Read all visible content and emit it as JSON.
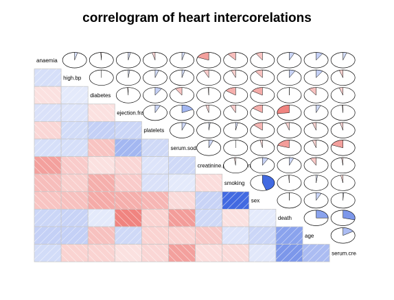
{
  "chart_data": {
    "type": "heatmap",
    "title": "correlogram of heart intercorelations",
    "variables": [
      "anaemia",
      "high.bp",
      "diabetes",
      "ejection.fraction",
      "platelets",
      "serum.sodium",
      "creatinine.phosphokinase",
      "smoking",
      "sex",
      "death",
      "age",
      "serum.creatinine"
    ],
    "lower_panel": "shade",
    "upper_panel": "pie",
    "correlations": [
      [
        1.0,
        0.04,
        -0.01,
        0.03,
        -0.04,
        0.04,
        -0.19,
        -0.11,
        -0.09,
        0.07,
        0.09,
        0.05
      ],
      [
        0.04,
        1.0,
        0.0,
        0.02,
        0.05,
        0.04,
        -0.07,
        -0.06,
        -0.1,
        0.08,
        0.09,
        -0.05
      ],
      [
        -0.01,
        0.0,
        1.0,
        -0.01,
        0.09,
        -0.09,
        -0.01,
        -0.15,
        -0.16,
        0.0,
        -0.1,
        -0.05
      ],
      [
        0.03,
        0.02,
        -0.01,
        1.0,
        0.07,
        0.18,
        -0.04,
        -0.07,
        -0.15,
        -0.27,
        0.06,
        -0.01
      ],
      [
        -0.04,
        0.05,
        0.09,
        0.07,
        1.0,
        0.06,
        0.02,
        0.03,
        -0.13,
        -0.05,
        -0.05,
        -0.04
      ],
      [
        0.04,
        0.04,
        -0.09,
        0.18,
        0.06,
        1.0,
        0.06,
        0.0,
        -0.03,
        -0.2,
        -0.05,
        -0.19
      ],
      [
        -0.19,
        -0.07,
        -0.01,
        -0.04,
        0.02,
        0.06,
        1.0,
        -0.02,
        0.08,
        0.06,
        -0.08,
        -0.02
      ],
      [
        -0.11,
        -0.06,
        -0.15,
        -0.07,
        0.03,
        0.0,
        -0.02,
        1.0,
        0.45,
        -0.01,
        0.02,
        -0.03
      ],
      [
        -0.09,
        -0.1,
        -0.16,
        -0.15,
        -0.13,
        -0.03,
        0.08,
        0.45,
        1.0,
        0.0,
        0.07,
        0.01
      ],
      [
        0.07,
        0.08,
        0.0,
        -0.27,
        -0.05,
        -0.2,
        0.06,
        -0.01,
        0.0,
        1.0,
        0.25,
        0.29
      ],
      [
        0.09,
        0.09,
        -0.1,
        0.06,
        -0.05,
        -0.05,
        -0.08,
        0.02,
        0.07,
        0.25,
        1.0,
        0.16
      ],
      [
        0.05,
        -0.05,
        -0.05,
        -0.01,
        -0.04,
        -0.19,
        -0.02,
        -0.03,
        0.01,
        0.29,
        0.16,
        1.0
      ]
    ],
    "colors": {
      "positive": "#4169e1",
      "negative": "#e8423c",
      "grid": "#c8c8c8",
      "stripe": "#ffffff"
    }
  }
}
